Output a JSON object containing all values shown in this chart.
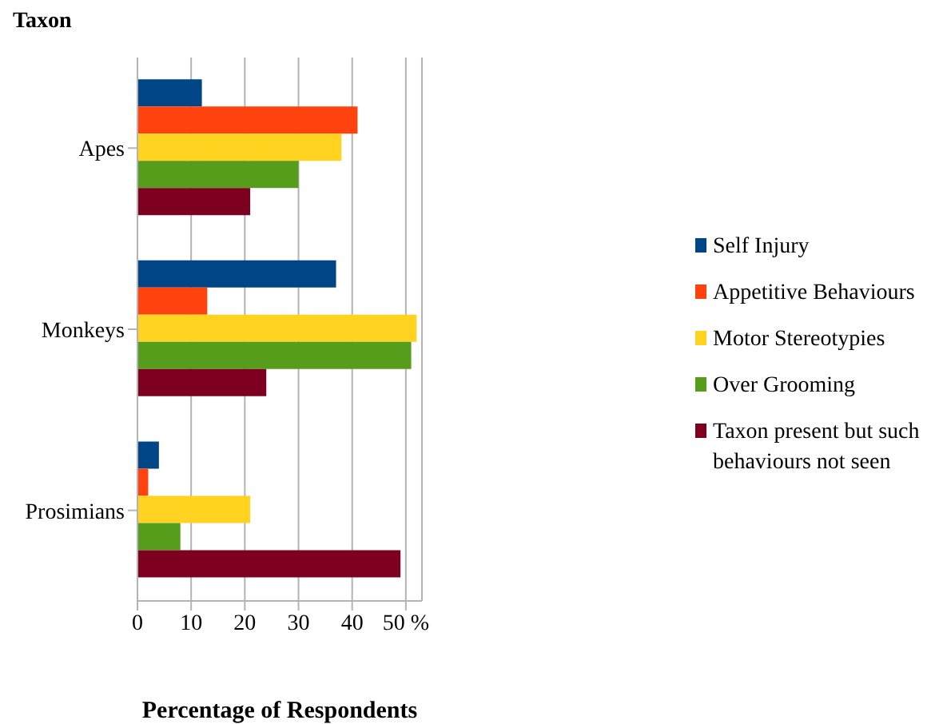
{
  "chart_data": {
    "type": "bar",
    "orientation": "horizontal",
    "ylabel": "Taxon",
    "xlabel": "Percentage of Respondents",
    "categories": [
      "Apes",
      "Monkeys",
      "Prosimians"
    ],
    "series": [
      {
        "name": "Self Injury",
        "color": "#004586",
        "values": [
          12,
          37,
          4
        ]
      },
      {
        "name": "Appetitive Behaviours",
        "color": "#ff420e",
        "values": [
          41,
          13,
          2
        ]
      },
      {
        "name": "Motor Stereotypies",
        "color": "#ffd320",
        "values": [
          38,
          52,
          21
        ]
      },
      {
        "name": "Over Grooming",
        "color": "#579d1c",
        "values": [
          30,
          51,
          8
        ]
      },
      {
        "name": "Taxon present but such behaviours not seen",
        "color": "#7e0021",
        "values": [
          21,
          24,
          49
        ]
      }
    ],
    "xlim": [
      0,
      53
    ],
    "xticks": [
      0,
      10,
      20,
      30,
      40,
      {
        "value": 50,
        "label": "50 %"
      }
    ],
    "grid": "x",
    "legend": "right"
  }
}
